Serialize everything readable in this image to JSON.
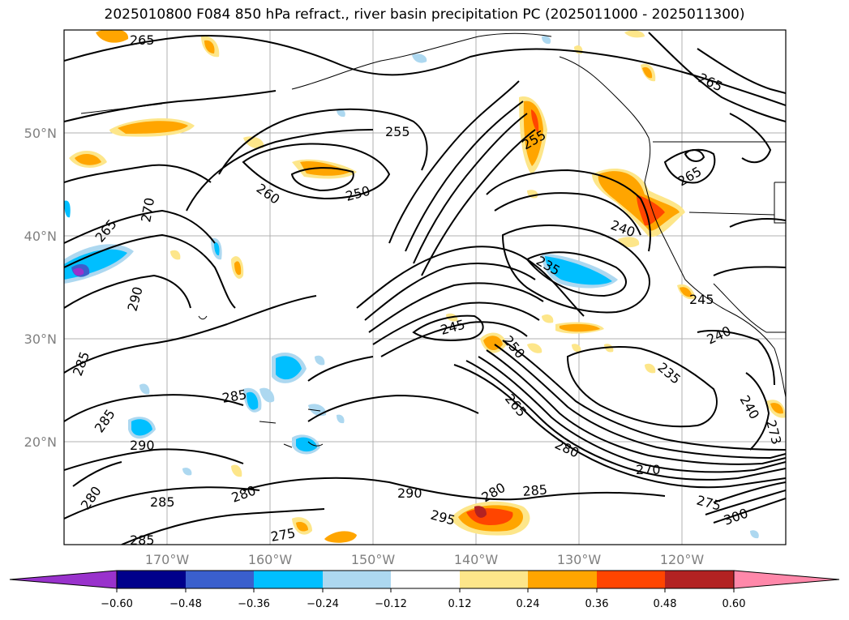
{
  "title": "2025010800 F084 850 hPa refract., river basin precipitation PC (2025011000 - 2025011300)",
  "map": {
    "lat_labels": [
      "50°N",
      "40°N",
      "30°N",
      "20°N"
    ],
    "lon_labels": [
      "170°W",
      "160°W",
      "150°W",
      "140°W",
      "130°W",
      "120°W"
    ],
    "contour_labels": [
      "265",
      "255",
      "265",
      "270",
      "265",
      "260",
      "250",
      "255",
      "240",
      "265",
      "290",
      "235",
      "245",
      "245",
      "285",
      "250",
      "240",
      "285",
      "235",
      "285",
      "265",
      "240",
      "290",
      "280",
      "280",
      "280",
      "290",
      "285",
      "295",
      "280",
      "285",
      "275",
      "300",
      "275",
      "285",
      "270",
      "273"
    ]
  },
  "colorbar": {
    "ticks": [
      "−0.60",
      "−0.48",
      "−0.36",
      "−0.24",
      "−0.12",
      "0.12",
      "0.24",
      "0.36",
      "0.48",
      "0.60"
    ],
    "colors": [
      "#9932cc",
      "#00008b",
      "#3a5fcd",
      "#00bfff",
      "#add8f0",
      "#ffffff",
      "#fde68a",
      "#ffa500",
      "#ff4500",
      "#b22222",
      "#ff88aa"
    ]
  }
}
